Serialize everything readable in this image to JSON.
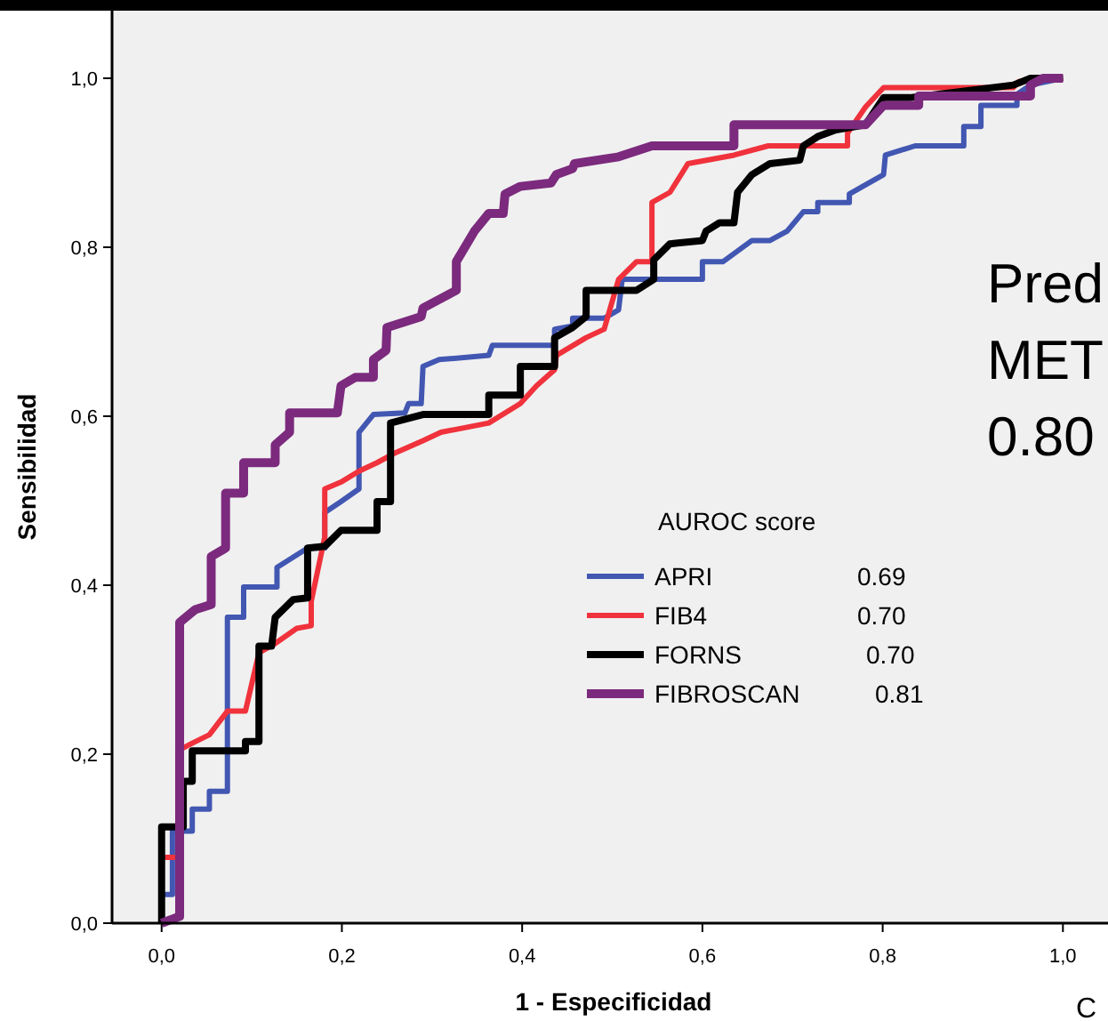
{
  "chart_data": {
    "type": "line",
    "xlabel": "1 - Especificidad",
    "ylabel": "Sensibilidad",
    "legend_title": "AUROC score",
    "legend": "center",
    "grid": false,
    "line_style": "solid",
    "xlim": [
      -0.055,
      1.05
    ],
    "ylim": [
      0,
      1.08
    ],
    "xticks": [
      {
        "value": 0,
        "label": "0,0"
      },
      {
        "value": 0.2,
        "label": "0,2"
      },
      {
        "value": 0.4,
        "label": "0,4"
      },
      {
        "value": 0.6,
        "label": "0,6"
      },
      {
        "value": 0.8,
        "label": "0,8"
      },
      {
        "value": 1,
        "label": "1,0"
      }
    ],
    "yticks": [
      {
        "value": 0,
        "label": "0,0"
      },
      {
        "value": 0.2,
        "label": "0,2"
      },
      {
        "value": 0.4,
        "label": "0,4"
      },
      {
        "value": 0.6,
        "label": "0,6"
      },
      {
        "value": 0.8,
        "label": "0,8"
      },
      {
        "value": 1,
        "label": "1,0"
      }
    ],
    "annotations": [
      "0.69",
      "0.70",
      "0.70",
      "0.81",
      "Pred",
      "MET",
      "0.80",
      "C"
    ],
    "series": [
      {
        "name": "APRI",
        "color": "#4257b2",
        "x": [
          0,
          0,
          0.012,
          0.012,
          0.034,
          0.034,
          0.053,
          0.053,
          0.073,
          0.073,
          0.091,
          0.091,
          0.128,
          0.128,
          0.162,
          0.181,
          0.181,
          0.199,
          0.219,
          0.219,
          0.235,
          0.27,
          0.274,
          0.288,
          0.29,
          0.308,
          0.363,
          0.367,
          0.436,
          0.436,
          0.456,
          0.456,
          0.491,
          0.507,
          0.511,
          0.6,
          0.6,
          0.623,
          0.655,
          0.675,
          0.694,
          0.712,
          0.728,
          0.728,
          0.763,
          0.763,
          0.801,
          0.803,
          0.836,
          0.89,
          0.89,
          0.909,
          0.909,
          0.949,
          0.949,
          0.964,
          1
        ],
        "values": [
          0,
          0.034,
          0.034,
          0.109,
          0.109,
          0.135,
          0.135,
          0.156,
          0.156,
          0.362,
          0.362,
          0.398,
          0.398,
          0.421,
          0.444,
          0.444,
          0.486,
          0.499,
          0.514,
          0.581,
          0.602,
          0.604,
          0.615,
          0.615,
          0.659,
          0.667,
          0.672,
          0.684,
          0.684,
          0.703,
          0.707,
          0.716,
          0.716,
          0.726,
          0.762,
          0.762,
          0.783,
          0.783,
          0.808,
          0.808,
          0.819,
          0.842,
          0.842,
          0.853,
          0.853,
          0.863,
          0.886,
          0.909,
          0.92,
          0.92,
          0.943,
          0.943,
          0.968,
          0.968,
          0.981,
          0.992,
          1
        ]
      },
      {
        "name": "FIB4",
        "color": "#f0323c",
        "x": [
          0,
          0,
          0.018,
          0.018,
          0.034,
          0.053,
          0.073,
          0.093,
          0.108,
          0.126,
          0.15,
          0.166,
          0.166,
          0.181,
          0.181,
          0.199,
          0.219,
          0.239,
          0.258,
          0.29,
          0.31,
          0.363,
          0.398,
          0.416,
          0.436,
          0.438,
          0.471,
          0.491,
          0.507,
          0.527,
          0.544,
          0.544,
          0.564,
          0.584,
          0.635,
          0.673,
          0.761,
          0.761,
          0.781,
          0.801,
          0.945,
          0.951,
          1
        ],
        "values": [
          0,
          0.078,
          0.078,
          0.204,
          0.213,
          0.223,
          0.251,
          0.251,
          0.32,
          0.331,
          0.349,
          0.352,
          0.381,
          0.457,
          0.514,
          0.522,
          0.535,
          0.545,
          0.556,
          0.571,
          0.581,
          0.592,
          0.615,
          0.636,
          0.655,
          0.672,
          0.693,
          0.703,
          0.762,
          0.783,
          0.783,
          0.853,
          0.865,
          0.899,
          0.909,
          0.92,
          0.92,
          0.935,
          0.966,
          0.989,
          0.989,
          0.996,
          1
        ]
      },
      {
        "name": "FORNS",
        "color": "#000000",
        "x": [
          0,
          0,
          0.024,
          0.024,
          0.034,
          0.034,
          0.093,
          0.093,
          0.108,
          0.108,
          0.122,
          0.126,
          0.146,
          0.162,
          0.162,
          0.181,
          0.199,
          0.239,
          0.239,
          0.254,
          0.254,
          0.29,
          0.363,
          0.363,
          0.398,
          0.398,
          0.436,
          0.436,
          0.456,
          0.471,
          0.471,
          0.527,
          0.546,
          0.546,
          0.564,
          0.6,
          0.604,
          0.619,
          0.635,
          0.639,
          0.655,
          0.675,
          0.708,
          0.712,
          0.728,
          0.748,
          0.781,
          0.801,
          0.83,
          0.945,
          0.964,
          1
        ],
        "values": [
          0,
          0.114,
          0.114,
          0.168,
          0.168,
          0.204,
          0.204,
          0.215,
          0.215,
          0.328,
          0.328,
          0.362,
          0.383,
          0.385,
          0.444,
          0.446,
          0.465,
          0.465,
          0.499,
          0.499,
          0.592,
          0.602,
          0.602,
          0.625,
          0.625,
          0.659,
          0.659,
          0.693,
          0.705,
          0.718,
          0.749,
          0.749,
          0.762,
          0.785,
          0.804,
          0.808,
          0.819,
          0.829,
          0.829,
          0.865,
          0.886,
          0.899,
          0.903,
          0.92,
          0.931,
          0.939,
          0.945,
          0.977,
          0.977,
          0.992,
          1,
          1
        ]
      },
      {
        "name": "FIBROSCAN",
        "color": "#7b2a7d",
        "x": [
          0,
          0.02,
          0.02,
          0.037,
          0.055,
          0.055,
          0.071,
          0.071,
          0.091,
          0.091,
          0.126,
          0.126,
          0.142,
          0.142,
          0.195,
          0.199,
          0.215,
          0.235,
          0.235,
          0.249,
          0.25,
          0.288,
          0.29,
          0.327,
          0.327,
          0.347,
          0.363,
          0.379,
          0.381,
          0.398,
          0.432,
          0.438,
          0.456,
          0.458,
          0.507,
          0.544,
          0.635,
          0.635,
          0.781,
          0.801,
          0.84,
          0.84,
          0.964,
          0.964,
          0.978,
          1
        ],
        "values": [
          0,
          0.008,
          0.356,
          0.371,
          0.377,
          0.434,
          0.444,
          0.509,
          0.509,
          0.545,
          0.545,
          0.566,
          0.581,
          0.604,
          0.604,
          0.636,
          0.646,
          0.646,
          0.667,
          0.678,
          0.705,
          0.718,
          0.728,
          0.749,
          0.783,
          0.819,
          0.84,
          0.84,
          0.863,
          0.872,
          0.876,
          0.886,
          0.893,
          0.899,
          0.907,
          0.92,
          0.92,
          0.945,
          0.945,
          0.968,
          0.968,
          0.979,
          0.979,
          0.992,
          1,
          1
        ]
      }
    ]
  }
}
